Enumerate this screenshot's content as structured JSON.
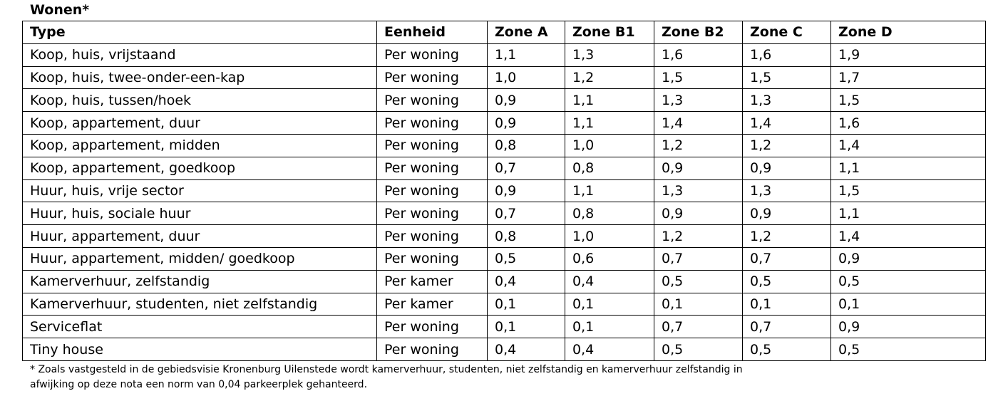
{
  "title": "Wonen*",
  "table": {
    "headers": [
      "Type",
      "Eenheid",
      "Zone A",
      "Zone B1",
      "Zone B2",
      "Zone C",
      "Zone D"
    ],
    "rows": [
      [
        "Koop, huis, vrijstaand",
        "Per woning",
        "1,1",
        "1,3",
        "1,6",
        "1,6",
        "1,9"
      ],
      [
        "Koop, huis, twee-onder-een-kap",
        "Per woning",
        "1,0",
        "1,2",
        "1,5",
        "1,5",
        "1,7"
      ],
      [
        "Koop, huis, tussen/hoek",
        "Per woning",
        "0,9",
        "1,1",
        "1,3",
        "1,3",
        "1,5"
      ],
      [
        "Koop, appartement, duur",
        "Per woning",
        "0,9",
        "1,1",
        "1,4",
        "1,4",
        "1,6"
      ],
      [
        "Koop, appartement, midden",
        "Per woning",
        "0,8",
        "1,0",
        "1,2",
        "1,2",
        "1,4"
      ],
      [
        "Koop, appartement, goedkoop",
        "Per woning",
        "0,7",
        "0,8",
        "0,9",
        "0,9",
        "1,1"
      ],
      [
        "Huur, huis, vrije sector",
        "Per woning",
        "0,9",
        "1,1",
        "1,3",
        "1,3",
        "1,5"
      ],
      [
        "Huur, huis, sociale huur",
        "Per woning",
        "0,7",
        "0,8",
        "0,9",
        "0,9",
        "1,1"
      ],
      [
        "Huur, appartement, duur",
        "Per woning",
        "0,8",
        "1,0",
        "1,2",
        "1,2",
        "1,4"
      ],
      [
        "Huur, appartement, midden/ goedkoop",
        "Per woning",
        "0,5",
        "0,6",
        "0,7",
        "0,7",
        "0,9"
      ],
      [
        "Kamerverhuur, zelfstandig",
        "Per kamer",
        "0,4",
        "0,4",
        "0,5",
        "0,5",
        "0,5"
      ],
      [
        "Kamerverhuur, studenten, niet zelfstandig",
        "Per kamer",
        "0,1",
        "0,1",
        "0,1",
        "0,1",
        "0,1"
      ],
      [
        "Serviceflat",
        "Per woning",
        "0,1",
        "0,1",
        "0,7",
        "0,7",
        "0,9"
      ],
      [
        "Tiny house",
        "Per woning",
        "0,4",
        "0,4",
        "0,5",
        "0,5",
        "0,5"
      ]
    ]
  },
  "footnote": {
    "line1": "* Zoals vastgesteld in de gebiedsvisie Kronenburg Uilenstede wordt kamerverhuur, studenten, niet zelfstandig en kamerverhuur zelfstandig in",
    "line2": "afwijking op deze nota een norm van 0,04 parkeerplek gehanteerd."
  }
}
